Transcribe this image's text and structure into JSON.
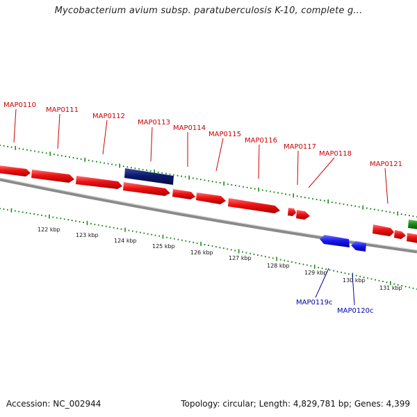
{
  "title": "Mycobacterium avium subsp. paratuberculosis K-10, complete g...",
  "footer": {
    "accession": "Accession: NC_002944",
    "stats": "Topology: circular; Length: 4,829,781 bp; Genes: 4,399"
  },
  "colors": {
    "forward_gene": "#ee1111",
    "selected_gene": "#0a1a6e",
    "reverse_gene": "#1a1aee",
    "other_feature": "#1a8a1a",
    "backbone": "#8a8a8a",
    "ticks": "#1a8a1a",
    "forward_label": "#cc0000",
    "reverse_label": "#0000aa"
  },
  "scale_labels": [
    "122 kbp",
    "123 kbp",
    "124 kbp",
    "125 kbp",
    "126 kbp",
    "127 kbp",
    "128 kbp",
    "129 kbp",
    "130 kbp",
    "131 kbp"
  ],
  "forward_genes": [
    "MAP0110",
    "MAP0111",
    "MAP0112",
    "MAP0113",
    "MAP0114",
    "MAP0115",
    "MAP0116",
    "MAP0117",
    "MAP0118",
    "MAP0121"
  ],
  "reverse_genes": [
    "MAP0119c",
    "MAP0120c"
  ]
}
